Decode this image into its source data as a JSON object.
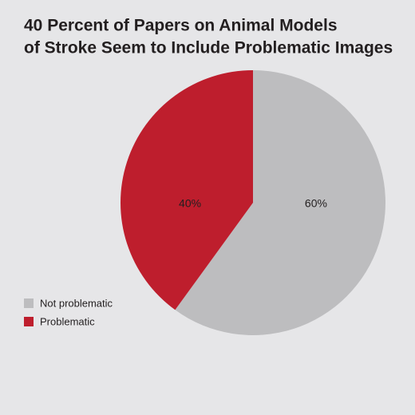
{
  "chart_data": {
    "type": "pie",
    "title": [
      "40 Percent of Papers on Animal Models",
      "of Stroke Seem to Include Problematic Images"
    ],
    "categories": [
      "Not problematic",
      "Problematic"
    ],
    "values": [
      60,
      40
    ],
    "value_labels": [
      "60%",
      "40%"
    ],
    "colors": [
      "#bdbdbf",
      "#be1e2d"
    ],
    "legend": "lower left"
  }
}
